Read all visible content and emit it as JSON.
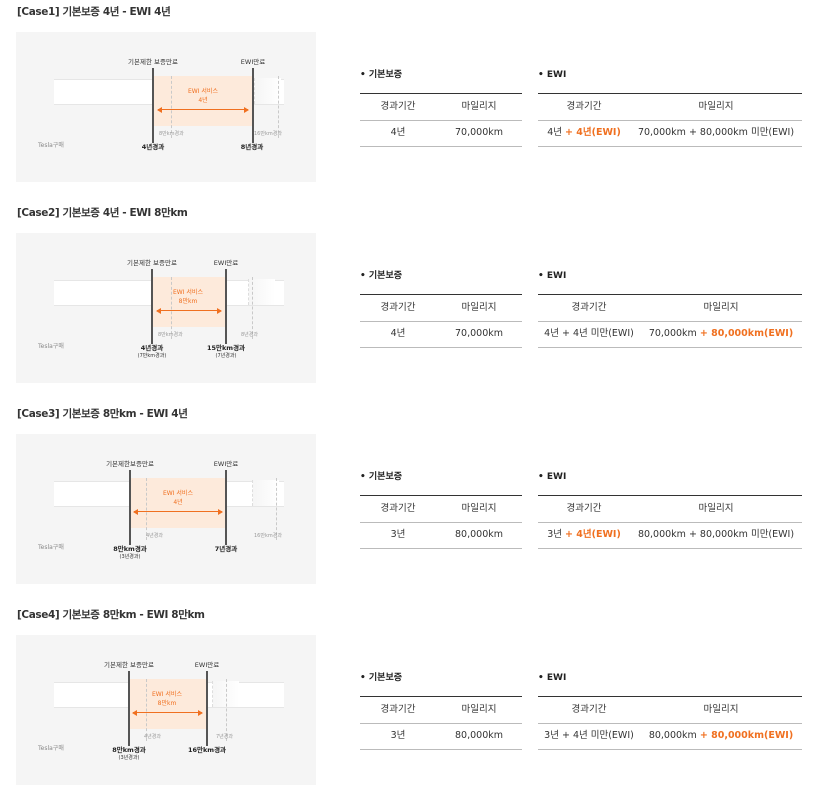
{
  "colors": {
    "accent": "#f07020",
    "service_band": "#fdeadb",
    "diagram_bg": "#f5f5f5"
  },
  "common": {
    "tesla_label": "Tesla구매",
    "basic_heading": "• 기본보증",
    "ewi_heading": "• EWI",
    "col_period": "경과기간",
    "col_mileage": "마일리지",
    "ewi_expiry": "EWI만료"
  },
  "cases": [
    {
      "title": "[Case1] 기본보증 4년 - EWI 4년",
      "diagram": {
        "basic_label": "기본제한 보증만료",
        "service_line1": "EWI 서비스",
        "service_line2": "4년",
        "mid_gray": "8만km경과",
        "right_gray": "16만km경과",
        "bottom_left": "4년경과",
        "bottom_left_sub": "",
        "bottom_right": "8년경과",
        "bottom_right_sub": ""
      },
      "basic": {
        "period": "4년",
        "mileage": "70,000km"
      },
      "ewi": {
        "period_plain": "4년 ",
        "period_hl": "+ 4년(EWI)",
        "mileage_plain": "70,000km + 80,000km 미만(EWI)",
        "mileage_hl": ""
      }
    },
    {
      "title": "[Case2] 기본보증 4년 - EWI 8만km",
      "diagram": {
        "basic_label": "기본제한 보증만료",
        "service_line1": "EWI 서비스",
        "service_line2": "8만km",
        "mid_gray": "8만km경과",
        "right_gray": "8년경과",
        "bottom_left": "4년경과",
        "bottom_left_sub": "(7만km경과)",
        "bottom_right": "15만km경과",
        "bottom_right_sub": "(7년경과)"
      },
      "basic": {
        "period": "4년",
        "mileage": "70,000km"
      },
      "ewi": {
        "period_plain": "4년 + 4년 미만(EWI)",
        "period_hl": "",
        "mileage_plain": "70,000km ",
        "mileage_hl": "+ 80,000km(EWI)"
      }
    },
    {
      "title": "[Case3] 기본보증 8만km - EWI 4년",
      "diagram": {
        "basic_label": "기본제한보증만료",
        "service_line1": "EWI 서비스",
        "service_line2": "4년",
        "mid_gray": "4년경과",
        "right_gray": "16만km경과",
        "bottom_left": "8만km경과",
        "bottom_left_sub": "(3년경과)",
        "bottom_right": "7년경과",
        "bottom_right_sub": ""
      },
      "basic": {
        "period": "3년",
        "mileage": "80,000km"
      },
      "ewi": {
        "period_plain": "3년 ",
        "period_hl": "+ 4년(EWI)",
        "mileage_plain": "80,000km + 80,000km 미만(EWI)",
        "mileage_hl": ""
      }
    },
    {
      "title": "[Case4] 기본보증 8만km - EWI 8만km",
      "diagram": {
        "basic_label": "기본제한 보증만료",
        "service_line1": "EWI 서비스",
        "service_line2": "8만km",
        "mid_gray": "4년경과",
        "right_gray": "7년경과",
        "bottom_left": "8만km경과",
        "bottom_left_sub": "(3년경과)",
        "bottom_right": "16만km경과",
        "bottom_right_sub": ""
      },
      "basic": {
        "period": "3년",
        "mileage": "80,000km"
      },
      "ewi": {
        "period_plain": "3년 + 4년 미만(EWI)",
        "period_hl": "",
        "mileage_plain": "80,000km ",
        "mileage_hl": "+ 80,000km(EWI)"
      }
    }
  ]
}
